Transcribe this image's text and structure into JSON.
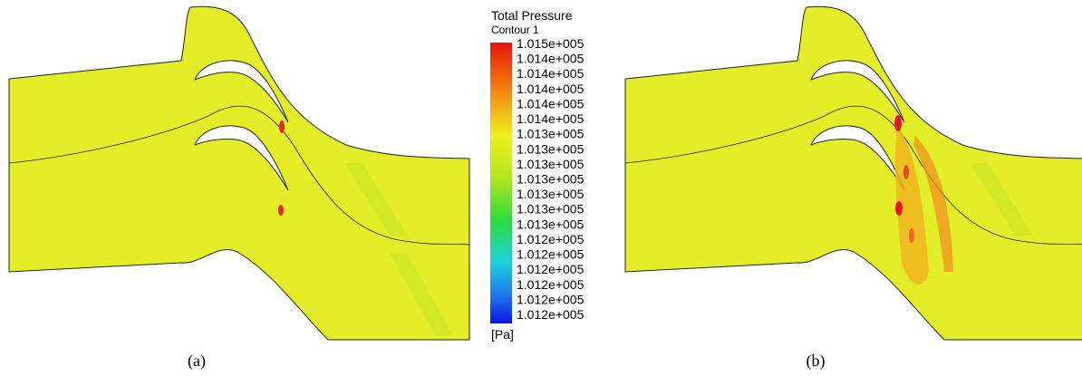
{
  "legend": {
    "title": "Total Pressure",
    "subtitle": "Contour 1",
    "labels": [
      "1.015e+005",
      "1.014e+005",
      "1.014e+005",
      "1.014e+005",
      "1.014e+005",
      "1.014e+005",
      "1.013e+005",
      "1.013e+005",
      "1.013e+005",
      "1.013e+005",
      "1.013e+005",
      "1.013e+005",
      "1.013e+005",
      "1.012e+005",
      "1.012e+005",
      "1.012e+005",
      "1.012e+005",
      "1.012e+005",
      "1.012e+005"
    ],
    "unit": "[Pa]"
  },
  "captions": [
    "(a)",
    "(b)"
  ]
}
